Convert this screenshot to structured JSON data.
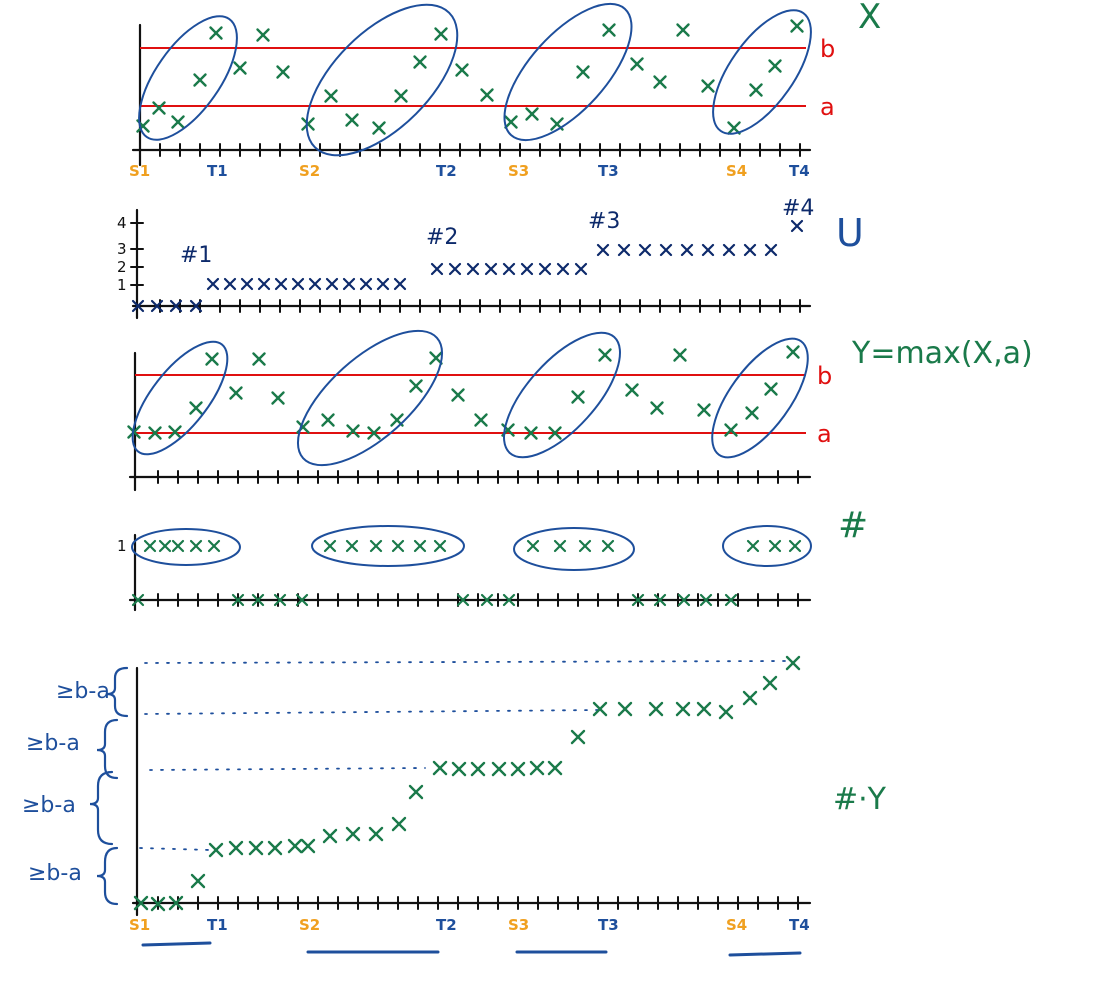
{
  "colors": {
    "green": "#1a7a4a",
    "red": "#e01010",
    "navy": "#0d2a6b",
    "blue": "#1e4f9c",
    "orange": "#f0a020",
    "ink": "#111111"
  },
  "labels": {
    "X": "X",
    "U": "U",
    "Y": "Y=max(X,a)",
    "H": "#",
    "HY": "#·Y",
    "a": "a",
    "b": "b",
    "one": "1",
    "geq_ba": "≥b-a"
  },
  "time_marks": {
    "S1": "S1",
    "T1": "T1",
    "S2": "S2",
    "T2": "T2",
    "S3": "S3",
    "T3": "T3",
    "S4": "S4",
    "T4": "T4"
  },
  "u_panel": {
    "y_ticks": [
      "1",
      "2",
      "3",
      "4"
    ],
    "crossings": [
      "#1",
      "#2",
      "#3",
      "#4"
    ]
  }
}
